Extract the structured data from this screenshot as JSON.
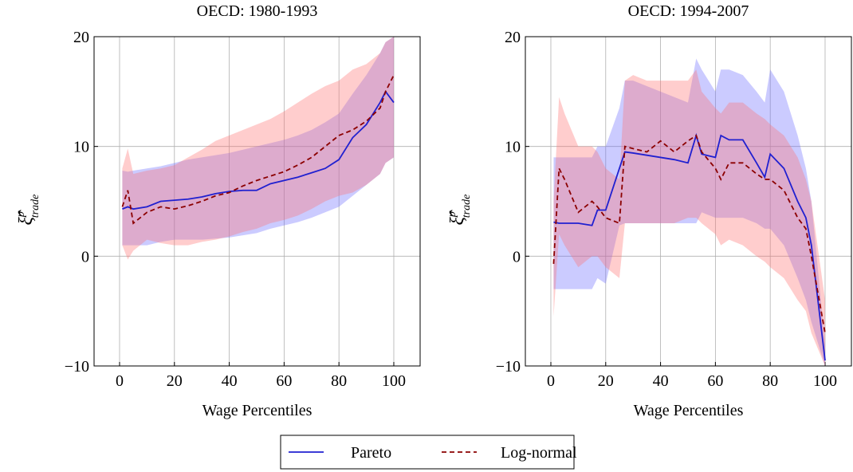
{
  "chart_data": [
    {
      "type": "line",
      "title": "OECD: 1980-1993",
      "xlabel": "Wage Percentiles",
      "ylabel": {
        "base": "ξ̂",
        "sup": "p",
        "sub": "trade"
      },
      "x": [
        1,
        3,
        5,
        10,
        15,
        20,
        25,
        30,
        35,
        40,
        45,
        50,
        55,
        60,
        65,
        70,
        75,
        80,
        85,
        90,
        95,
        97,
        100
      ],
      "xlim": [
        -9.3,
        109.6
      ],
      "xticks": [
        0,
        20,
        40,
        60,
        80,
        100
      ],
      "ylim": [
        -10,
        20
      ],
      "yticks": [
        {
          "value": -10,
          "label": "−10"
        },
        0,
        10,
        20
      ],
      "grid": true,
      "series": [
        {
          "name": "Pareto",
          "color": "#2020d0",
          "band_color": "#6b6bff",
          "dash": false,
          "values": [
            4.3,
            4.5,
            4.3,
            4.5,
            5.0,
            5.1,
            5.2,
            5.4,
            5.7,
            5.9,
            6.0,
            6.0,
            6.6,
            6.9,
            7.2,
            7.6,
            8.0,
            8.8,
            10.8,
            12.0,
            14.0,
            15.0,
            14.0
          ],
          "lower": [
            1.0,
            1.0,
            1.0,
            1.0,
            1.3,
            1.5,
            1.5,
            1.5,
            1.6,
            1.7,
            1.9,
            2.1,
            2.5,
            2.8,
            3.1,
            3.5,
            4.0,
            4.5,
            5.5,
            6.5,
            7.5,
            8.5,
            9.0
          ],
          "upper": [
            7.8,
            7.7,
            7.8,
            8.0,
            8.2,
            8.5,
            8.8,
            9.0,
            9.2,
            9.4,
            9.7,
            10.0,
            10.3,
            10.6,
            11.0,
            11.5,
            12.2,
            13.0,
            14.8,
            16.5,
            18.5,
            19.5,
            20.0
          ]
        },
        {
          "name": "Log-normal",
          "color": "#8b0000",
          "band_color": "#ff7070",
          "dash": true,
          "values": [
            4.5,
            6.0,
            3.0,
            4.0,
            4.5,
            4.3,
            4.6,
            5.0,
            5.5,
            5.8,
            6.4,
            6.9,
            7.3,
            7.7,
            8.3,
            9.0,
            10.0,
            11.0,
            11.5,
            12.3,
            13.5,
            15.0,
            16.5
          ],
          "lower": [
            1.0,
            -0.3,
            0.5,
            1.5,
            1.2,
            1.0,
            1.0,
            1.3,
            1.5,
            1.8,
            2.2,
            2.5,
            3.0,
            3.3,
            3.7,
            4.3,
            5.0,
            5.5,
            5.8,
            6.5,
            7.5,
            8.5,
            9.0
          ],
          "upper": [
            8.0,
            9.8,
            7.5,
            7.8,
            8.0,
            8.3,
            9.0,
            9.7,
            10.5,
            11.0,
            11.5,
            12.0,
            12.5,
            13.2,
            14.0,
            14.8,
            15.5,
            16.0,
            17.0,
            17.5,
            18.5,
            19.5,
            20.0
          ]
        }
      ]
    },
    {
      "type": "line",
      "title": "OECD: 1994-2007",
      "xlabel": "Wage Percentiles",
      "ylabel": {
        "base": "ξ̂",
        "sup": "p",
        "sub": "trade"
      },
      "x": [
        1,
        3,
        5,
        10,
        15,
        17,
        20,
        25,
        27,
        30,
        35,
        40,
        45,
        50,
        53,
        55,
        60,
        62,
        65,
        70,
        75,
        78,
        80,
        85,
        90,
        93,
        95,
        100
      ],
      "xlim": [
        -9.3,
        109.6
      ],
      "xticks": [
        0,
        20,
        40,
        60,
        80,
        100
      ],
      "ylim": [
        -10,
        20
      ],
      "yticks": [
        {
          "value": -10,
          "label": "−10"
        },
        0,
        10,
        20
      ],
      "grid": true,
      "series": [
        {
          "name": "Pareto",
          "color": "#2020d0",
          "band_color": "#6b6bff",
          "dash": false,
          "values": [
            3.1,
            3.0,
            3.0,
            3.0,
            2.8,
            4.2,
            4.2,
            8.0,
            9.5,
            9.4,
            9.2,
            9.0,
            8.8,
            8.5,
            11.0,
            9.3,
            9.0,
            11.0,
            10.6,
            10.6,
            8.5,
            7.2,
            9.3,
            8.0,
            5.0,
            3.5,
            1.0,
            -9.5
          ],
          "lower": [
            -3,
            -3,
            -3,
            -3,
            -3,
            -2,
            -2.5,
            2.8,
            3,
            3,
            3,
            3,
            3,
            3,
            3,
            4,
            3.5,
            3.5,
            3.5,
            3.5,
            3,
            2.5,
            2.5,
            1,
            -2,
            -4,
            -6,
            -10
          ],
          "upper": [
            9,
            9,
            9,
            9,
            9,
            10,
            10,
            13.5,
            16,
            16,
            15.5,
            15,
            14.5,
            14,
            18,
            17,
            15,
            17,
            17,
            16.5,
            15,
            14,
            17,
            15,
            11,
            8,
            5,
            -8
          ]
        },
        {
          "name": "Log-normal",
          "color": "#8b0000",
          "band_color": "#ff7070",
          "dash": true,
          "values": [
            -0.7,
            8,
            7,
            4,
            5,
            4.5,
            3.5,
            3,
            10,
            9.8,
            9.5,
            10.5,
            9.5,
            10.5,
            11,
            9.5,
            8,
            7,
            8.5,
            8.5,
            7.5,
            7,
            7,
            6,
            3.5,
            2.5,
            0,
            -7
          ],
          "lower": [
            -5.5,
            2,
            1,
            -1,
            0,
            0,
            -1,
            -2,
            3,
            3,
            3,
            3,
            3,
            3.5,
            3.5,
            3,
            2,
            1,
            1.5,
            1,
            0,
            -0.5,
            -1,
            -2,
            -4,
            -5,
            -7,
            -10
          ],
          "upper": [
            5,
            14.5,
            13,
            10,
            10,
            9.5,
            8,
            7,
            16,
            16.5,
            16,
            16,
            16,
            16,
            17,
            15,
            13.5,
            13,
            14,
            14,
            13,
            12.5,
            12,
            11,
            9,
            7,
            5,
            -4
          ]
        }
      ]
    }
  ]
}
